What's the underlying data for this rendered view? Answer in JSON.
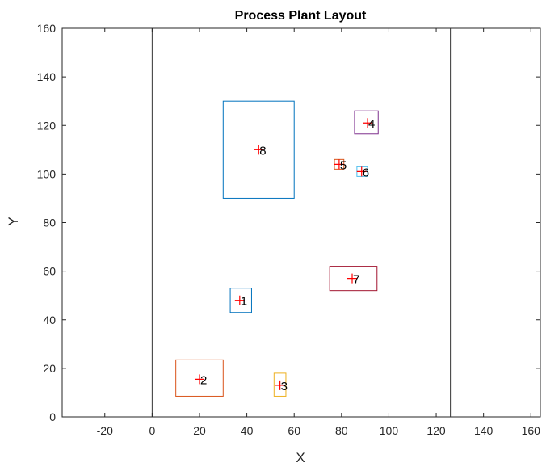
{
  "chart_data": {
    "type": "scatter",
    "title": "Process Plant Layout",
    "xlabel": "X",
    "ylabel": "Y",
    "xlim": [
      -38,
      164
    ],
    "ylim": [
      0,
      160
    ],
    "xticks": [
      -20,
      0,
      20,
      40,
      60,
      80,
      100,
      120,
      140,
      160
    ],
    "yticks": [
      0,
      20,
      40,
      60,
      80,
      100,
      120,
      140,
      160
    ],
    "grid": false,
    "boundaries": [
      0,
      126
    ],
    "departments": [
      {
        "label": "1",
        "center": [
          37,
          48
        ],
        "x_range": [
          33,
          42
        ],
        "y_range": [
          43,
          53
        ],
        "color": "#0072BD"
      },
      {
        "label": "2",
        "center": [
          20,
          15.5
        ],
        "x_range": [
          10,
          30
        ],
        "y_range": [
          8.5,
          23.5
        ],
        "color": "#D95319"
      },
      {
        "label": "3",
        "center": [
          54,
          13
        ],
        "x_range": [
          51.5,
          56.5
        ],
        "y_range": [
          8.5,
          18
        ],
        "color": "#EDB120"
      },
      {
        "label": "4",
        "center": [
          91,
          121
        ],
        "x_range": [
          85.5,
          95.5
        ],
        "y_range": [
          116.5,
          126
        ],
        "color": "#7E2F8E"
      },
      {
        "label": "5",
        "center": [
          79,
          104
        ],
        "x_range": [
          77,
          81
        ],
        "y_range": [
          102,
          106
        ],
        "color": "#D95319"
      },
      {
        "label": "6",
        "center": [
          88.5,
          101
        ],
        "x_range": [
          86.5,
          91
        ],
        "y_range": [
          99,
          103
        ],
        "color": "#4DBEEE"
      },
      {
        "label": "7",
        "center": [
          84.5,
          57
        ],
        "x_range": [
          75,
          95
        ],
        "y_range": [
          52,
          62
        ],
        "color": "#A2142F"
      },
      {
        "label": "8",
        "center": [
          45,
          110
        ],
        "x_range": [
          30,
          60
        ],
        "y_range": [
          90,
          130
        ],
        "color": "#0072BD"
      }
    ],
    "marker": {
      "symbol": "+",
      "color": "#FF0000"
    }
  }
}
